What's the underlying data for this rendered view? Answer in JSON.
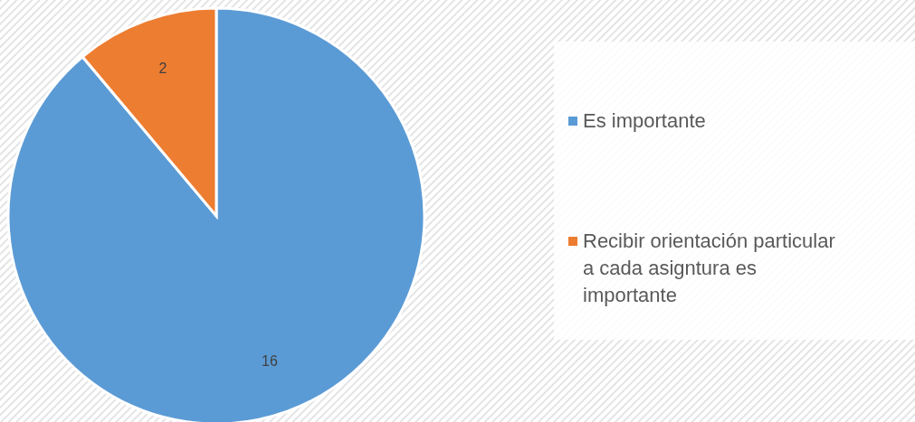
{
  "chart_data": {
    "type": "pie",
    "categories": [
      "Es importante",
      "Recibir orientación particular a cada asigntura es importante"
    ],
    "values": [
      16,
      2
    ],
    "colors": [
      "#5b9bd5",
      "#ed7d31"
    ],
    "data_labels": true,
    "legend": "right"
  }
}
